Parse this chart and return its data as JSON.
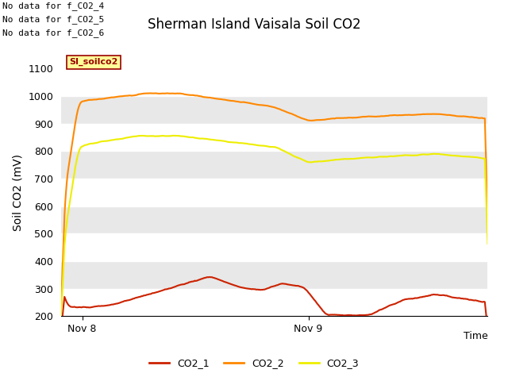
{
  "title": "Sherman Island Vaisala Soil CO2",
  "ylabel": "Soil CO2 (mV)",
  "xlabel": "Time",
  "ylim": [
    200,
    1100
  ],
  "no_data_texts": [
    "No data for f_CO2_4",
    "No data for f_CO2_5",
    "No data for f_CO2_6"
  ],
  "legend_label": "SI_soilco2",
  "legend_label_color": "#990000",
  "legend_label_bg": "#ffff99",
  "legend_label_border": "#990000",
  "xtick_labels": [
    "Nov 8",
    "Nov 9"
  ],
  "xtick_positions": [
    0.05,
    0.58
  ],
  "band_colors": [
    "#e8e8e8",
    "#d8d8d8"
  ],
  "series": [
    {
      "name": "CO2_1",
      "color": "#cc2200",
      "linestyle": "-"
    },
    {
      "name": "CO2_2",
      "color": "#ff8800",
      "linestyle": "-"
    },
    {
      "name": "CO2_3",
      "color": "#eeee00",
      "linestyle": "-"
    }
  ]
}
